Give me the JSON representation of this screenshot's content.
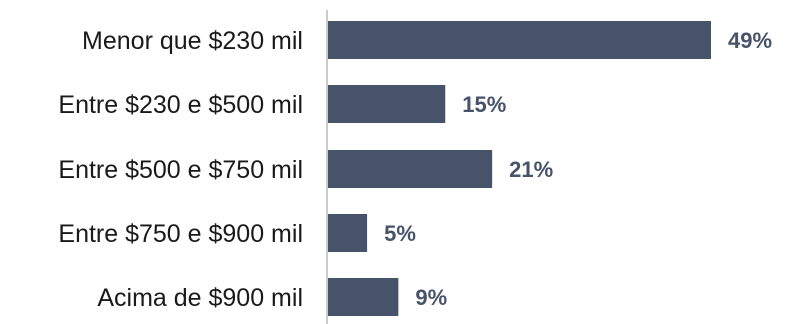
{
  "chart_data": {
    "type": "bar",
    "orientation": "horizontal",
    "categories": [
      "Menor que $230 mil",
      "Entre $230 e $500 mil",
      "Entre $500 e $750 mil",
      "Entre $750 e $900 mil",
      "Acima de $900 mil"
    ],
    "values": [
      49,
      15,
      21,
      5,
      9
    ],
    "value_labels": [
      "49%",
      "15%",
      "21%",
      "5%",
      "9%"
    ],
    "unit": "%",
    "xlim": [
      0,
      49
    ],
    "grid": false,
    "legend": "none",
    "colors": {
      "bar": "#465368",
      "value_label": "#465368",
      "axis": "#b8b8b8",
      "category_label": "#1a1a1a"
    }
  }
}
